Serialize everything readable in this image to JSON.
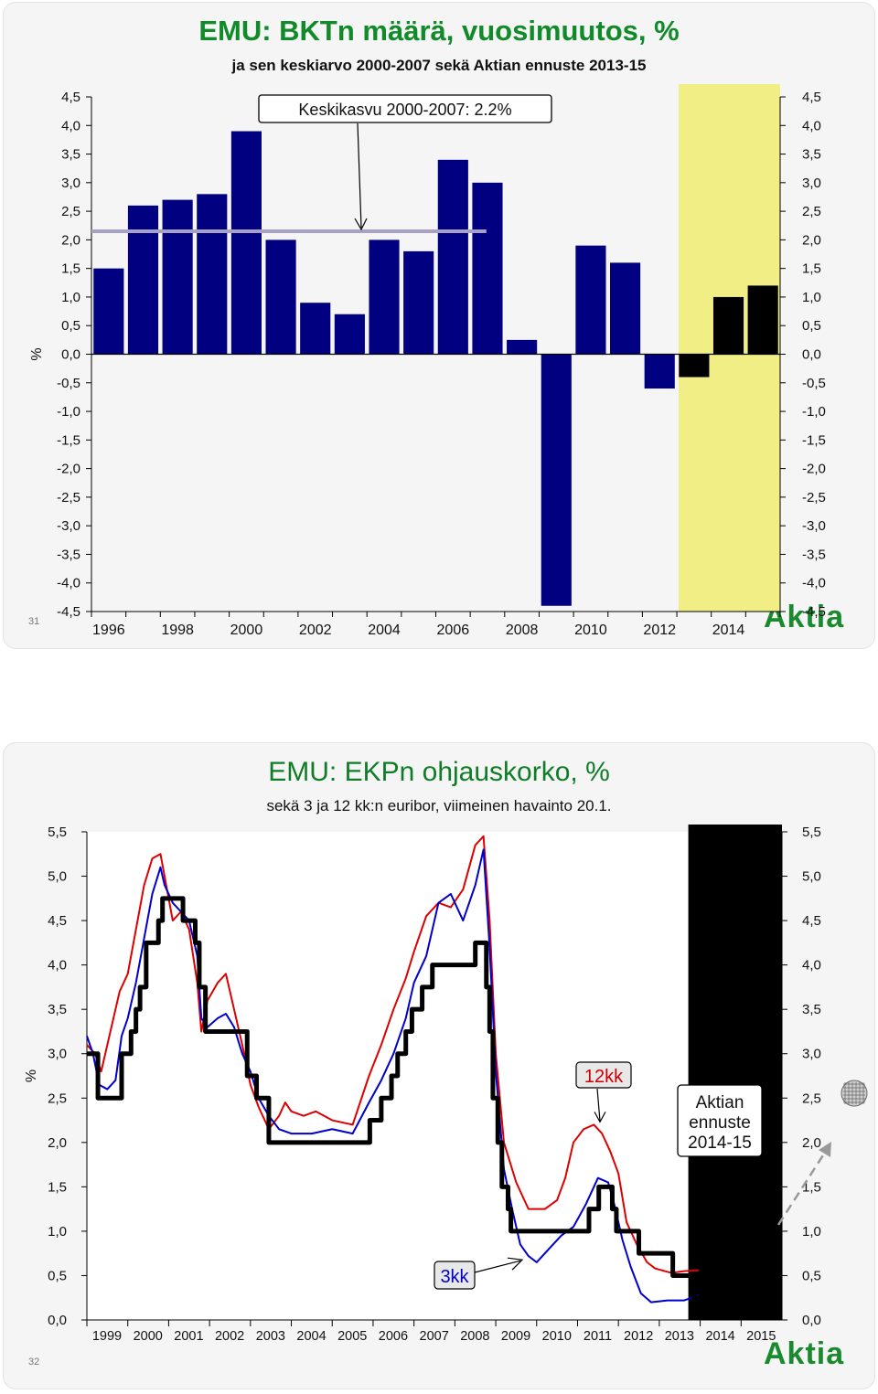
{
  "charts": [
    {
      "title": "EMU: BKTn määrä, vuosimuutos, %",
      "subtitle": "ja sen keskiarvo 2000-2007 sekä Aktian ennuste 2013-15",
      "page_number": "31",
      "logo": "Aktia",
      "y_unit": "%",
      "annotation": "Keskikasvu 2000-2007: 2.2%"
    },
    {
      "title": "EMU: EKPn ohjauskorko, %",
      "subtitle": "sekä 3 ja 12 kk:n euribor, viimeinen havainto 20.1.",
      "page_number": "32",
      "logo": "Aktia",
      "y_unit": "%",
      "label_12kk": "12kk",
      "label_3kk": "3kk",
      "forecast_label": [
        "Aktian",
        "ennuste",
        "2014-15"
      ]
    }
  ],
  "colors": {
    "title_green": "#118a2a",
    "bar_actual": "#000080",
    "bar_forecast": "#000000",
    "forecast_band": "#f0ee84",
    "average_line": "#a8a0c8",
    "policy_rate": "#000000",
    "euribor_3m": "#0000cc",
    "euribor_12m": "#dd0000"
  },
  "chart_data": [
    {
      "type": "bar",
      "x": [
        1996,
        1997,
        1998,
        1999,
        2000,
        2001,
        2002,
        2003,
        2004,
        2005,
        2006,
        2007,
        2008,
        2009,
        2010,
        2011,
        2012,
        2013,
        2014,
        2015
      ],
      "values": [
        1.5,
        2.6,
        2.7,
        2.8,
        3.9,
        2.0,
        0.9,
        0.7,
        2.0,
        1.8,
        3.4,
        3.0,
        0.25,
        -4.4,
        1.9,
        1.6,
        -0.6,
        -0.4,
        1.0,
        1.2
      ],
      "forecast_from": 2013,
      "average": {
        "label": "Keskikasvu 2000-2007: 2.2%",
        "value": 2.15,
        "x_from": 1996,
        "x_to": 2008
      },
      "ylim": [
        -4.5,
        4.5
      ],
      "yticks": [
        "4,5",
        "4,0",
        "3,5",
        "3,0",
        "2,5",
        "2,0",
        "1,5",
        "1,0",
        "0,5",
        "0,0",
        "-0,5",
        "-1,0",
        "-1,5",
        "-2,0",
        "-2,5",
        "-3,0",
        "-3,5",
        "-4,0",
        "-4,5"
      ],
      "xticks": [
        "1996",
        "1998",
        "2000",
        "2002",
        "2004",
        "2006",
        "2008",
        "2010",
        "2012",
        "2014"
      ],
      "ylabel": "%",
      "legend": "none"
    },
    {
      "type": "line",
      "xlim": [
        1999,
        2016
      ],
      "ylim": [
        0,
        5.5
      ],
      "xticks": [
        "1999",
        "2000",
        "2001",
        "2002",
        "2003",
        "2004",
        "2005",
        "2006",
        "2007",
        "2008",
        "2009",
        "2010",
        "2011",
        "2012",
        "2013",
        "2014",
        "2015"
      ],
      "yticks": [
        "5,5",
        "5,0",
        "4,5",
        "4,0",
        "3,5",
        "3,0",
        "2,5",
        "2,0",
        "1,5",
        "1,0",
        "0,5",
        "0,0"
      ],
      "ylabel": "%",
      "forecast_from": 2014.0,
      "series": [
        {
          "name": "",
          "style": "step",
          "points": [
            [
              1999.0,
              3.0
            ],
            [
              1999.27,
              2.5
            ],
            [
              1999.85,
              3.0
            ],
            [
              2000.08,
              3.25
            ],
            [
              2000.2,
              3.5
            ],
            [
              2000.3,
              3.75
            ],
            [
              2000.45,
              4.25
            ],
            [
              2000.75,
              4.5
            ],
            [
              2000.85,
              4.75
            ],
            [
              2001.35,
              4.5
            ],
            [
              2001.65,
              4.25
            ],
            [
              2001.75,
              3.75
            ],
            [
              2001.9,
              3.25
            ],
            [
              2002.92,
              2.75
            ],
            [
              2003.15,
              2.5
            ],
            [
              2003.45,
              2.0
            ],
            [
              2005.92,
              2.25
            ],
            [
              2006.2,
              2.5
            ],
            [
              2006.45,
              2.75
            ],
            [
              2006.6,
              3.0
            ],
            [
              2006.8,
              3.25
            ],
            [
              2006.95,
              3.5
            ],
            [
              2007.2,
              3.75
            ],
            [
              2007.45,
              4.0
            ],
            [
              2008.5,
              4.25
            ],
            [
              2008.77,
              3.75
            ],
            [
              2008.85,
              3.25
            ],
            [
              2008.93,
              2.5
            ],
            [
              2009.05,
              2.0
            ],
            [
              2009.15,
              1.5
            ],
            [
              2009.3,
              1.25
            ],
            [
              2009.37,
              1.0
            ],
            [
              2011.28,
              1.25
            ],
            [
              2011.52,
              1.5
            ],
            [
              2011.85,
              1.25
            ],
            [
              2011.95,
              1.0
            ],
            [
              2012.5,
              0.75
            ],
            [
              2013.33,
              0.5
            ],
            [
              2013.85,
              0.25
            ],
            [
              2013.97,
              0.25
            ]
          ]
        },
        {
          "name": "3kk",
          "style": "line",
          "points": [
            [
              1999.0,
              3.2
            ],
            [
              1999.15,
              3.0
            ],
            [
              1999.3,
              2.65
            ],
            [
              1999.5,
              2.6
            ],
            [
              1999.7,
              2.7
            ],
            [
              1999.85,
              3.2
            ],
            [
              2000.0,
              3.4
            ],
            [
              2000.2,
              3.8
            ],
            [
              2000.4,
              4.3
            ],
            [
              2000.6,
              4.8
            ],
            [
              2000.8,
              5.1
            ],
            [
              2000.9,
              4.9
            ],
            [
              2001.1,
              4.7
            ],
            [
              2001.3,
              4.6
            ],
            [
              2001.5,
              4.5
            ],
            [
              2001.7,
              4.1
            ],
            [
              2001.8,
              3.4
            ],
            [
              2001.95,
              3.3
            ],
            [
              2002.2,
              3.4
            ],
            [
              2002.4,
              3.45
            ],
            [
              2002.6,
              3.3
            ],
            [
              2002.8,
              3.0
            ],
            [
              2003.0,
              2.8
            ],
            [
              2003.2,
              2.5
            ],
            [
              2003.45,
              2.3
            ],
            [
              2003.7,
              2.15
            ],
            [
              2004.0,
              2.1
            ],
            [
              2004.5,
              2.1
            ],
            [
              2005.0,
              2.15
            ],
            [
              2005.5,
              2.1
            ],
            [
              2005.9,
              2.45
            ],
            [
              2006.2,
              2.7
            ],
            [
              2006.5,
              3.0
            ],
            [
              2006.8,
              3.4
            ],
            [
              2007.0,
              3.8
            ],
            [
              2007.3,
              4.1
            ],
            [
              2007.6,
              4.7
            ],
            [
              2007.9,
              4.8
            ],
            [
              2008.2,
              4.5
            ],
            [
              2008.5,
              4.9
            ],
            [
              2008.7,
              5.3
            ],
            [
              2008.85,
              4.2
            ],
            [
              2009.0,
              2.8
            ],
            [
              2009.2,
              1.7
            ],
            [
              2009.4,
              1.25
            ],
            [
              2009.6,
              0.85
            ],
            [
              2009.8,
              0.72
            ],
            [
              2010.0,
              0.65
            ],
            [
              2010.3,
              0.8
            ],
            [
              2010.6,
              0.95
            ],
            [
              2010.9,
              1.05
            ],
            [
              2011.2,
              1.3
            ],
            [
              2011.5,
              1.6
            ],
            [
              2011.75,
              1.55
            ],
            [
              2011.9,
              1.3
            ],
            [
              2012.1,
              0.9
            ],
            [
              2012.3,
              0.6
            ],
            [
              2012.55,
              0.3
            ],
            [
              2012.8,
              0.2
            ],
            [
              2013.2,
              0.22
            ],
            [
              2013.6,
              0.22
            ],
            [
              2013.97,
              0.28
            ]
          ]
        },
        {
          "name": "12kk",
          "style": "line",
          "points": [
            [
              1999.0,
              3.1
            ],
            [
              1999.2,
              3.0
            ],
            [
              1999.35,
              2.8
            ],
            [
              1999.55,
              3.2
            ],
            [
              1999.8,
              3.7
            ],
            [
              2000.0,
              3.9
            ],
            [
              2000.2,
              4.4
            ],
            [
              2000.4,
              4.9
            ],
            [
              2000.6,
              5.2
            ],
            [
              2000.8,
              5.25
            ],
            [
              2000.9,
              5.0
            ],
            [
              2001.1,
              4.5
            ],
            [
              2001.3,
              4.6
            ],
            [
              2001.5,
              4.4
            ],
            [
              2001.7,
              3.8
            ],
            [
              2001.8,
              3.25
            ],
            [
              2001.95,
              3.6
            ],
            [
              2002.2,
              3.8
            ],
            [
              2002.4,
              3.9
            ],
            [
              2002.6,
              3.5
            ],
            [
              2002.8,
              3.1
            ],
            [
              2003.0,
              2.65
            ],
            [
              2003.2,
              2.4
            ],
            [
              2003.45,
              2.15
            ],
            [
              2003.7,
              2.3
            ],
            [
              2003.85,
              2.45
            ],
            [
              2004.0,
              2.35
            ],
            [
              2004.3,
              2.3
            ],
            [
              2004.6,
              2.35
            ],
            [
              2005.0,
              2.25
            ],
            [
              2005.5,
              2.2
            ],
            [
              2005.9,
              2.75
            ],
            [
              2006.2,
              3.1
            ],
            [
              2006.5,
              3.5
            ],
            [
              2006.8,
              3.85
            ],
            [
              2007.0,
              4.15
            ],
            [
              2007.3,
              4.55
            ],
            [
              2007.6,
              4.7
            ],
            [
              2007.9,
              4.65
            ],
            [
              2008.2,
              4.85
            ],
            [
              2008.5,
              5.35
            ],
            [
              2008.7,
              5.45
            ],
            [
              2008.85,
              4.5
            ],
            [
              2009.0,
              3.0
            ],
            [
              2009.2,
              2.0
            ],
            [
              2009.5,
              1.55
            ],
            [
              2009.8,
              1.25
            ],
            [
              2010.2,
              1.25
            ],
            [
              2010.5,
              1.35
            ],
            [
              2010.7,
              1.6
            ],
            [
              2010.9,
              2.0
            ],
            [
              2011.15,
              2.15
            ],
            [
              2011.4,
              2.2
            ],
            [
              2011.6,
              2.1
            ],
            [
              2011.8,
              1.9
            ],
            [
              2012.0,
              1.65
            ],
            [
              2012.2,
              1.1
            ],
            [
              2012.45,
              0.85
            ],
            [
              2012.7,
              0.65
            ],
            [
              2012.9,
              0.58
            ],
            [
              2013.3,
              0.53
            ],
            [
              2013.6,
              0.55
            ],
            [
              2013.97,
              0.56
            ]
          ]
        }
      ],
      "legend": "none"
    }
  ]
}
